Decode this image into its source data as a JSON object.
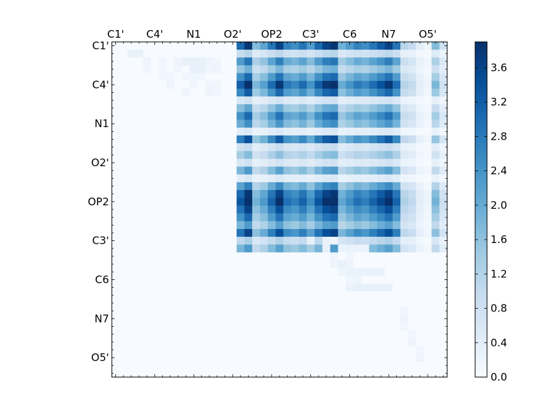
{
  "chart_data": {
    "type": "heatmap",
    "title": "",
    "n_rows": 43,
    "n_cols": 43,
    "x_tick_labels": [
      "C1'",
      "C4'",
      "N1",
      "O2'",
      "OP2",
      "C3'",
      "C6",
      "N7",
      "O5'"
    ],
    "y_tick_labels": [
      "C1'",
      "C4'",
      "N1",
      "O2'",
      "OP2",
      "C3'",
      "C6",
      "N7",
      "O5'"
    ],
    "tick_step": 5,
    "tick_start": 0,
    "x_axis_position": "top",
    "colormap": "Blues",
    "colorbar": {
      "min": 0.0,
      "max": 3.9,
      "ticks": [
        "0.0",
        "0.4",
        "0.8",
        "1.2",
        "1.6",
        "2.0",
        "2.4",
        "2.8",
        "3.2",
        "3.6"
      ],
      "tick_values": [
        0.0,
        0.4,
        0.8,
        1.2,
        1.6,
        2.0,
        2.4,
        2.8,
        3.2,
        3.6
      ]
    },
    "row_weights": [
      2.0,
      0.6,
      1.5,
      1.0,
      1.6,
      2.1,
      1.7,
      0.4,
      1.1,
      1.6,
      1.3,
      0.3,
      1.8,
      0.5,
      0.9,
      0.4,
      1.2,
      0.3,
      1.4,
      2.0,
      2.2,
      1.9,
      1.6,
      1.2,
      1.9,
      0.7,
      1.2
    ],
    "col_weights": [
      1.6,
      2.0,
      0.9,
      1.1,
      1.5,
      1.9,
      1.4,
      1.3,
      1.5,
      1.2,
      1.6,
      1.9,
      2.0,
      1.0,
      1.2,
      1.4,
      1.3,
      1.5,
      1.7,
      1.9,
      1.5,
      0.6,
      0.5,
      0.2,
      0.1,
      0.9,
      0.4
    ],
    "cells": [
      {
        "r": 1,
        "c": 2,
        "v": 0.3
      },
      {
        "r": 1,
        "c": 3,
        "v": 0.3
      },
      {
        "r": 2,
        "c": 4,
        "v": 0.2
      },
      {
        "r": 2,
        "c": 6,
        "v": 0.15
      },
      {
        "r": 2,
        "c": 8,
        "v": 0.2
      },
      {
        "r": 2,
        "c": 9,
        "v": 0.3
      },
      {
        "r": 2,
        "c": 10,
        "v": 0.3
      },
      {
        "r": 2,
        "c": 11,
        "v": 0.3
      },
      {
        "r": 2,
        "c": 12,
        "v": 0.2
      },
      {
        "r": 2,
        "c": 13,
        "v": 0.15
      },
      {
        "r": 3,
        "c": 4,
        "v": 0.15
      },
      {
        "r": 3,
        "c": 6,
        "v": 0.15
      },
      {
        "r": 3,
        "c": 8,
        "v": 0.15
      },
      {
        "r": 3,
        "c": 10,
        "v": 0.3
      },
      {
        "r": 3,
        "c": 11,
        "v": 0.3
      },
      {
        "r": 3,
        "c": 12,
        "v": 0.15
      },
      {
        "r": 3,
        "c": 13,
        "v": 0.2
      },
      {
        "r": 4,
        "c": 6,
        "v": 0.15
      },
      {
        "r": 4,
        "c": 7,
        "v": 0.15
      },
      {
        "r": 4,
        "c": 9,
        "v": 0.15
      },
      {
        "r": 4,
        "c": 10,
        "v": 0.15
      },
      {
        "r": 4,
        "c": 11,
        "v": 0.15
      },
      {
        "r": 5,
        "c": 7,
        "v": 0.2
      },
      {
        "r": 5,
        "c": 10,
        "v": 0.15
      },
      {
        "r": 5,
        "c": 12,
        "v": 0.15
      },
      {
        "r": 5,
        "c": 13,
        "v": 0.15
      },
      {
        "r": 6,
        "c": 9,
        "v": 0.2
      },
      {
        "r": 6,
        "c": 12,
        "v": 0.2
      },
      {
        "r": 6,
        "c": 13,
        "v": 0.15
      },
      {
        "r": 25,
        "c": 25,
        "v": 0.3
      },
      {
        "r": 25,
        "c": 27,
        "v": 0.3
      },
      {
        "r": 25,
        "c": 28,
        "v": 0.2
      },
      {
        "r": 26,
        "c": 27,
        "v": 0.3
      },
      {
        "r": 26,
        "c": 29,
        "v": 0.25
      },
      {
        "r": 26,
        "c": 30,
        "v": 0.25
      },
      {
        "r": 26,
        "c": 31,
        "v": 0.25
      },
      {
        "r": 26,
        "c": 32,
        "v": 0.25
      },
      {
        "r": 27,
        "c": 28,
        "v": 0.2
      },
      {
        "r": 27,
        "c": 30,
        "v": 0.15
      },
      {
        "r": 28,
        "c": 28,
        "v": 0.2
      },
      {
        "r": 28,
        "c": 29,
        "v": 0.3
      },
      {
        "r": 28,
        "c": 30,
        "v": 0.2
      },
      {
        "r": 29,
        "c": 29,
        "v": 0.2
      },
      {
        "r": 29,
        "c": 30,
        "v": 0.25
      },
      {
        "r": 29,
        "c": 31,
        "v": 0.25
      },
      {
        "r": 29,
        "c": 32,
        "v": 0.25
      },
      {
        "r": 29,
        "c": 33,
        "v": 0.25
      },
      {
        "r": 29,
        "c": 34,
        "v": 0.25
      },
      {
        "r": 30,
        "c": 30,
        "v": 0.15
      },
      {
        "r": 30,
        "c": 31,
        "v": 0.2
      },
      {
        "r": 31,
        "c": 30,
        "v": 0.25
      },
      {
        "r": 31,
        "c": 31,
        "v": 0.3
      },
      {
        "r": 31,
        "c": 32,
        "v": 0.3
      },
      {
        "r": 31,
        "c": 33,
        "v": 0.3
      },
      {
        "r": 31,
        "c": 34,
        "v": 0.3
      },
      {
        "r": 31,
        "c": 35,
        "v": 0.3
      },
      {
        "r": 34,
        "c": 37,
        "v": 0.15
      },
      {
        "r": 35,
        "c": 37,
        "v": 0.2
      },
      {
        "r": 36,
        "c": 37,
        "v": 0.15
      },
      {
        "r": 37,
        "c": 38,
        "v": 0.15
      },
      {
        "r": 38,
        "c": 38,
        "v": 0.2
      },
      {
        "r": 39,
        "c": 39,
        "v": 0.15
      },
      {
        "r": 40,
        "c": 39,
        "v": 0.2
      }
    ]
  }
}
